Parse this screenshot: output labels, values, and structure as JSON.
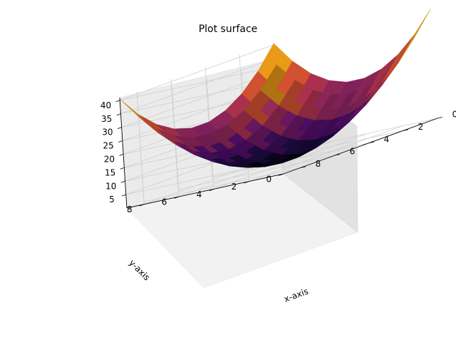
{
  "chart_data": {
    "type": "surface",
    "title": "Plot surface",
    "xlabel": "x-axis",
    "ylabel": "y-axis",
    "zlabel": "",
    "x_ticks": [
      0,
      2,
      4,
      6,
      8
    ],
    "y_ticks": [
      0,
      2,
      4,
      6,
      8
    ],
    "z_ticks": [
      5,
      10,
      15,
      20,
      25,
      30,
      35,
      40
    ],
    "xlim": [
      0,
      9
    ],
    "ylim": [
      0,
      9
    ],
    "zlim": [
      0,
      41
    ],
    "grid": true,
    "colormap": "inferno",
    "surface": {
      "function": "z = (x - 4.5)^2 + (y - 4.5)^2",
      "x": [
        0,
        1,
        2,
        3,
        4,
        5,
        6,
        7,
        8,
        9
      ],
      "y": [
        0,
        1,
        2,
        3,
        4,
        5,
        6,
        7,
        8,
        9
      ]
    }
  }
}
